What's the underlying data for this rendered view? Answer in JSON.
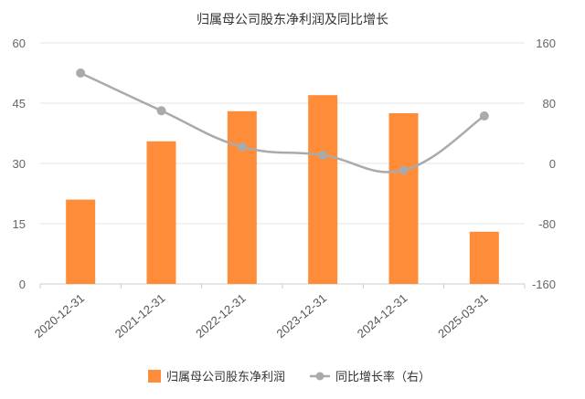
{
  "chart_data": {
    "type": "bar",
    "title": "归属母公司股东净利润及同比增长",
    "categories": [
      "2020-12-31",
      "2021-12-31",
      "2022-12-31",
      "2023-12-31",
      "2024-12-31",
      "2025-03-31"
    ],
    "series": [
      {
        "name": "归属母公司股东净利润",
        "type": "bar",
        "axis": "left",
        "color": "#FF8C38",
        "values": [
          21,
          35.5,
          43,
          47,
          42.5,
          13
        ]
      },
      {
        "name": "同比增长率（右）",
        "type": "line",
        "axis": "right",
        "color": "#AAAAAA",
        "values": [
          120,
          70,
          22,
          11,
          -9,
          63
        ]
      }
    ],
    "y_left": {
      "ylim": [
        0,
        60
      ],
      "ticks": [
        "60",
        "45",
        "30",
        "15",
        "0"
      ]
    },
    "y_right": {
      "ylim": [
        -160,
        160
      ],
      "ticks": [
        "160",
        "80",
        "0",
        "-80",
        "-160"
      ]
    },
    "grid": true,
    "legend": "bottom-center"
  }
}
